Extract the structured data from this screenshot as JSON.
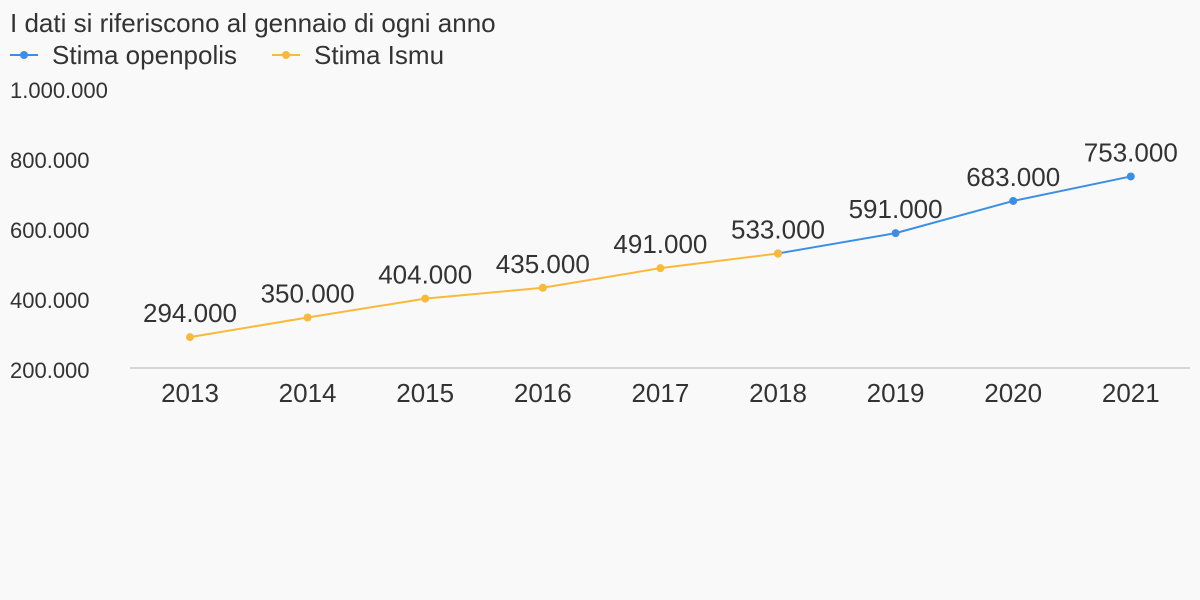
{
  "chart_data": {
    "type": "line",
    "subtitle": "I dati si riferiscono al gennaio di ogni anno",
    "categories": [
      "2013",
      "2014",
      "2015",
      "2016",
      "2017",
      "2018",
      "2019",
      "2020",
      "2021"
    ],
    "series": [
      {
        "name": "Stima openpolis",
        "color": "#3a8ee6",
        "values": [
          null,
          null,
          null,
          null,
          null,
          533000,
          591000,
          683000,
          753000
        ]
      },
      {
        "name": "Stima Ismu",
        "color": "#f9b93a",
        "values": [
          294000,
          350000,
          404000,
          435000,
          491000,
          533000,
          null,
          null,
          null
        ]
      }
    ],
    "data_labels": [
      "294.000",
      "350.000",
      "404.000",
      "435.000",
      "491.000",
      "533.000",
      "591.000",
      "683.000",
      "753.000"
    ],
    "data_label_values": [
      294000,
      350000,
      404000,
      435000,
      491000,
      533000,
      591000,
      683000,
      753000
    ],
    "yticks": [
      {
        "value": 1000000,
        "label": "1.000.000"
      },
      {
        "value": 800000,
        "label": "800.000"
      },
      {
        "value": 600000,
        "label": "600.000"
      },
      {
        "value": 400000,
        "label": "400.000"
      },
      {
        "value": 200000,
        "label": "200.000"
      }
    ],
    "ylim": [
      200000,
      1000000
    ],
    "grid": false,
    "legend_position": "top-left",
    "axis_color": "#d6d6d6"
  }
}
